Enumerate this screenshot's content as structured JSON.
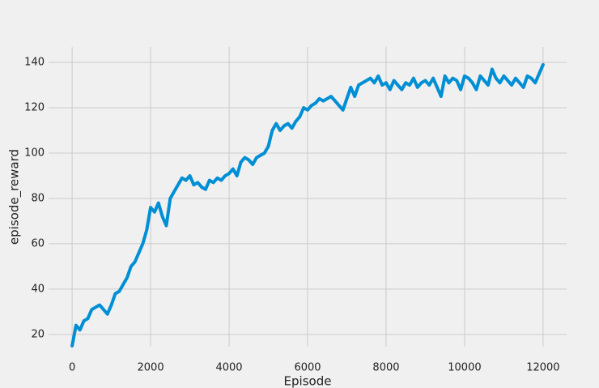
{
  "chart_data": {
    "type": "line",
    "x_label": "Episode",
    "y_label": "episode_reward",
    "x": [
      0,
      100,
      200,
      300,
      400,
      500,
      600,
      700,
      800,
      900,
      1000,
      1100,
      1200,
      1300,
      1400,
      1500,
      1600,
      1700,
      1800,
      1900,
      2000,
      2100,
      2200,
      2300,
      2400,
      2500,
      2600,
      2700,
      2800,
      2900,
      3000,
      3100,
      3200,
      3300,
      3400,
      3500,
      3600,
      3700,
      3800,
      3900,
      4000,
      4100,
      4200,
      4300,
      4400,
      4500,
      4600,
      4700,
      4800,
      4900,
      5000,
      5100,
      5200,
      5300,
      5400,
      5500,
      5600,
      5700,
      5800,
      5900,
      6000,
      6100,
      6200,
      6300,
      6400,
      6500,
      6600,
      6700,
      6800,
      6900,
      7000,
      7100,
      7200,
      7300,
      7400,
      7500,
      7600,
      7700,
      7800,
      7900,
      8000,
      8100,
      8200,
      8300,
      8400,
      8500,
      8600,
      8700,
      8800,
      8900,
      9000,
      9100,
      9200,
      9300,
      9400,
      9500,
      9600,
      9700,
      9800,
      9900,
      10000,
      10100,
      10200,
      10300,
      10400,
      10500,
      10600,
      10700,
      10800,
      10900,
      11000,
      11100,
      11200,
      11300,
      11400,
      11500,
      11600,
      11700,
      11800,
      11900,
      12000
    ],
    "values": [
      15,
      24,
      22,
      26,
      27,
      31,
      32,
      33,
      31,
      29,
      33,
      38,
      39,
      42,
      45,
      50,
      52,
      56,
      60,
      66,
      76,
      74,
      78,
      72,
      68,
      80,
      83,
      86,
      89,
      88,
      90,
      86,
      87,
      85,
      84,
      88,
      87,
      89,
      88,
      90,
      91,
      93,
      90,
      96,
      98,
      97,
      95,
      98,
      99,
      100,
      103,
      110,
      113,
      110,
      112,
      113,
      111,
      114,
      116,
      120,
      119,
      121,
      122,
      124,
      123,
      124,
      125,
      123,
      121,
      119,
      124,
      129,
      125,
      130,
      131,
      132,
      133,
      131,
      134,
      130,
      131,
      128,
      132,
      130,
      128,
      131,
      130,
      133,
      129,
      131,
      132,
      130,
      133,
      129,
      125,
      134,
      131,
      133,
      132,
      128,
      134,
      133,
      131,
      128,
      134,
      132,
      130,
      137,
      133,
      131,
      134,
      132,
      130,
      133,
      131,
      129,
      134,
      133,
      131,
      135,
      139
    ],
    "color": "#008fd5",
    "xlim": [
      -600,
      12600
    ],
    "ylim": [
      14.6,
      146.8
    ],
    "xticks": [
      0,
      2000,
      4000,
      6000,
      8000,
      10000,
      12000
    ],
    "yticks": [
      20,
      40,
      60,
      80,
      100,
      120,
      140
    ],
    "grid": true
  }
}
